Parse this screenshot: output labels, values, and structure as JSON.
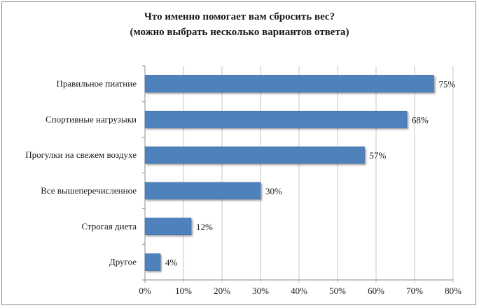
{
  "chart_data": {
    "type": "bar",
    "orientation": "horizontal",
    "title": "Что именно помогает вам сбросить вес?",
    "subtitle": "(можно выбрать несколько вариантов ответа)",
    "categories": [
      "Правильное пиатние",
      "Спортивные нагрузыки",
      "Прогулки на свежем воздухе",
      "Все вышеперечисленное",
      "Строгая диета",
      "Другое"
    ],
    "values": [
      75,
      68,
      57,
      30,
      12,
      4
    ],
    "data_labels": [
      "75%",
      "68%",
      "57%",
      "30%",
      "12%",
      "4%"
    ],
    "x_ticks": [
      "0%",
      "10%",
      "20%",
      "30%",
      "40%",
      "50%",
      "60%",
      "70%",
      "80%"
    ],
    "xlim": [
      0,
      80
    ],
    "grid": true,
    "legend": "none",
    "bar_color": "#4f81bd",
    "grid_color": "#c6c6c6"
  }
}
